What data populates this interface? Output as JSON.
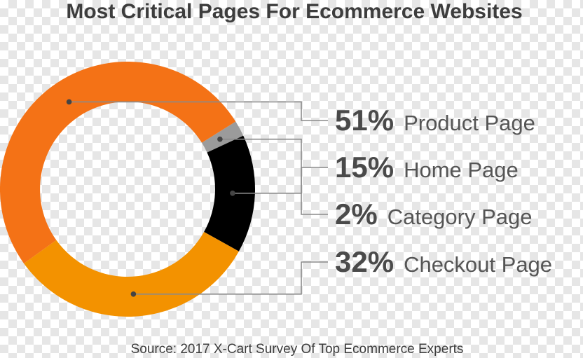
{
  "chart_data": {
    "type": "pie",
    "title": "Most Critical Pages For Ecommerce Websites",
    "source": "Source: 2017 X-Cart Survey Of Top Ecommerce Experts",
    "slices": [
      {
        "label": "Product Page",
        "value": 51,
        "value_label": "51%",
        "color": "#f47216"
      },
      {
        "label": "Home Page",
        "value": 15,
        "value_label": "15%",
        "color": "#000000"
      },
      {
        "label": "Category Page",
        "value": 2,
        "value_label": "2%",
        "color": "#9b9b9b"
      },
      {
        "label": "Checkout Page",
        "value": 32,
        "value_label": "32%",
        "color": "#f39200"
      }
    ],
    "slice_drawing_order": [
      "Category Page",
      "Home Page",
      "Checkout Page",
      "Product Page"
    ],
    "leader_line_color": "#8a8a8a"
  }
}
